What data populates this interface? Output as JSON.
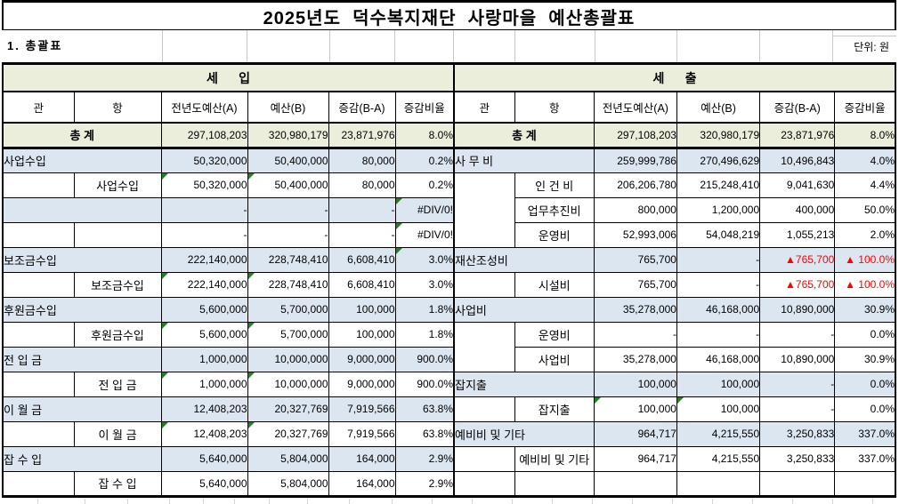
{
  "title": "2025년도  덕수복지재단  사랑마을  예산총괄표",
  "section_label": "1. 총괄표",
  "unit_label": "단위: 원",
  "colors": {
    "header_bg": "#ECEEDC",
    "band_bg": "#DCE6F1",
    "error_red": "#FF0000",
    "indicator_green": "#178717",
    "border_black": "#000000"
  },
  "columns": [
    "관",
    "항",
    "전년도예산(A)",
    "예산(B)",
    "증감(B-A)",
    "증감비율"
  ],
  "revenue": {
    "section_title": "세      입",
    "rows": [
      {
        "type": "total",
        "label": "총      계",
        "a": "297,108,203",
        "b": "320,980,179",
        "diff": "23,871,976",
        "ratio": "8.0%",
        "tri": [],
        "red": false
      },
      {
        "type": "gwan",
        "label": "사업수입",
        "a": "50,320,000",
        "b": "50,400,000",
        "diff": "80,000",
        "ratio": "0.2%",
        "tri": [],
        "red": false
      },
      {
        "type": "hang",
        "gwan_span": 1,
        "label": "사업수입",
        "a": "50,320,000",
        "b": "50,400,000",
        "diff": "80,000",
        "ratio": "0.2%",
        "tri": [
          "a",
          "b"
        ],
        "red": false
      },
      {
        "type": "gwan",
        "label": "",
        "a": "-",
        "b": "-",
        "diff": "-",
        "ratio": "#DIV/0!",
        "tri": [
          "ratio"
        ],
        "red": false
      },
      {
        "type": "hang",
        "gwan_span": 1,
        "label": "",
        "a": "-",
        "b": "-",
        "diff": "-",
        "ratio": "#DIV/0!",
        "tri": [
          "ratio"
        ],
        "red": false
      },
      {
        "type": "gwan",
        "label": "보조금수입",
        "a": "222,140,000",
        "b": "228,748,410",
        "diff": "6,608,410",
        "ratio": "3.0%",
        "tri": [
          "ratio"
        ],
        "red": false
      },
      {
        "type": "hang",
        "gwan_span": 1,
        "label": "보조금수입",
        "a": "222,140,000",
        "b": "228,748,410",
        "diff": "6,608,410",
        "ratio": "3.0%",
        "tri": [
          "a",
          "b"
        ],
        "red": false
      },
      {
        "type": "gwan",
        "label": "후원금수입",
        "a": "5,600,000",
        "b": "5,700,000",
        "diff": "100,000",
        "ratio": "1.8%",
        "tri": [],
        "red": false
      },
      {
        "type": "hang",
        "gwan_span": 1,
        "label": "후원금수입",
        "a": "5,600,000",
        "b": "5,700,000",
        "diff": "100,000",
        "ratio": "1.8%",
        "tri": [
          "a",
          "b"
        ],
        "red": false
      },
      {
        "type": "gwan",
        "label": "전  입  금",
        "a": "1,000,000",
        "b": "10,000,000",
        "diff": "9,000,000",
        "ratio": "900.0%",
        "tri": [],
        "red": false
      },
      {
        "type": "hang",
        "gwan_span": 1,
        "label": "전  입  금",
        "a": "1,000,000",
        "b": "10,000,000",
        "diff": "9,000,000",
        "ratio": "900.0%",
        "tri": [
          "a",
          "b"
        ],
        "red": false
      },
      {
        "type": "gwan",
        "label": "이  월  금",
        "a": "12,408,203",
        "b": "20,327,769",
        "diff": "7,919,566",
        "ratio": "63.8%",
        "tri": [],
        "red": false
      },
      {
        "type": "hang",
        "gwan_span": 1,
        "label": "이  월  금",
        "a": "12,408,203",
        "b": "20,327,769",
        "diff": "7,919,566",
        "ratio": "63.8%",
        "tri": [
          "a",
          "b"
        ],
        "red": false
      },
      {
        "type": "gwan",
        "label": "잡  수  입",
        "a": "5,640,000",
        "b": "5,804,000",
        "diff": "164,000",
        "ratio": "2.9%",
        "tri": [],
        "red": false
      },
      {
        "type": "hang",
        "gwan_span": 1,
        "label": "잡  수  입",
        "a": "5,640,000",
        "b": "5,804,000",
        "diff": "164,000",
        "ratio": "2.9%",
        "tri": [],
        "red": false
      }
    ]
  },
  "expenditure": {
    "section_title": "세      출",
    "rows": [
      {
        "type": "total",
        "label": "총      계",
        "a": "297,108,203",
        "b": "320,980,179",
        "diff": "23,871,976",
        "ratio": "8.0%",
        "tri": [],
        "red": false
      },
      {
        "type": "gwan",
        "label": "사  무  비",
        "a": "259,999,786",
        "b": "270,496,629",
        "diff": "10,496,843",
        "ratio": "4.0%",
        "tri": [],
        "red": false
      },
      {
        "type": "hang",
        "gwan_span": 3,
        "label": "인  건  비",
        "a": "206,206,780",
        "b": "215,248,410",
        "diff": "9,041,630",
        "ratio": "4.4%",
        "tri": [],
        "red": false
      },
      {
        "type": "hang",
        "gwan_span": 0,
        "label": "업무추진비",
        "a": "800,000",
        "b": "1,200,000",
        "diff": "400,000",
        "ratio": "50.0%",
        "tri": [],
        "red": false
      },
      {
        "type": "hang",
        "gwan_span": 0,
        "label": "운영비",
        "a": "52,993,006",
        "b": "54,048,219",
        "diff": "1,055,213",
        "ratio": "2.0%",
        "tri": [],
        "red": false
      },
      {
        "type": "gwan",
        "label": "재산조성비",
        "a": "765,700",
        "b": "-",
        "diff": "▲765,700",
        "ratio": "▲ 100.0%",
        "tri": [],
        "red": true
      },
      {
        "type": "hang",
        "gwan_span": 1,
        "label": "시설비",
        "a": "765,700",
        "b": "-",
        "diff": "▲765,700",
        "ratio": "▲ 100.0%",
        "tri": [],
        "red": true
      },
      {
        "type": "gwan",
        "label": "사업비",
        "a": "35,278,000",
        "b": "46,168,000",
        "diff": "10,890,000",
        "ratio": "30.9%",
        "tri": [],
        "red": false
      },
      {
        "type": "hang",
        "gwan_span": 2,
        "label": "운영비",
        "a": "-",
        "b": "-",
        "diff": "-",
        "ratio": "0.0%",
        "tri": [],
        "red": false
      },
      {
        "type": "hang",
        "gwan_span": 0,
        "label": "사업비",
        "a": "35,278,000",
        "b": "46,168,000",
        "diff": "10,890,000",
        "ratio": "30.9%",
        "tri": [],
        "red": false
      },
      {
        "type": "gwan",
        "label": "잡지출",
        "a": "100,000",
        "b": "100,000",
        "diff": "-",
        "ratio": "0.0%",
        "tri": [],
        "red": false
      },
      {
        "type": "hang",
        "gwan_span": 1,
        "label": "잡지출",
        "a": "100,000",
        "b": "100,000",
        "diff": "-",
        "ratio": "0.0%",
        "tri": [
          "a",
          "b"
        ],
        "red": false
      },
      {
        "type": "gwan",
        "label": "예비비 및 기타",
        "a": "964,717",
        "b": "4,215,550",
        "diff": "3,250,833",
        "ratio": "337.0%",
        "tri": [],
        "red": false
      },
      {
        "type": "hang",
        "gwan_span": 1,
        "label": "예비비 및 기타",
        "a": "964,717",
        "b": "4,215,550",
        "diff": "3,250,833",
        "ratio": "337.0%",
        "tri": [],
        "red": false
      },
      {
        "type": "hang",
        "gwan_span": 1,
        "label": "",
        "a": "",
        "b": "",
        "diff": "",
        "ratio": "",
        "tri": [],
        "red": false
      }
    ]
  }
}
